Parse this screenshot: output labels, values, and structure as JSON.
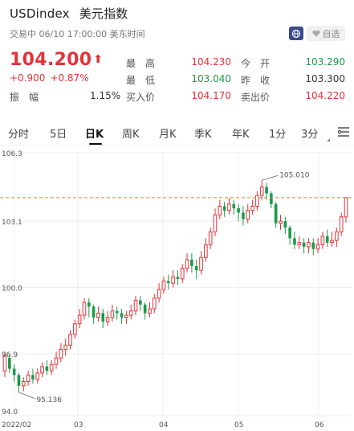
{
  "header": {
    "symbol": "USDindex",
    "name": "美元指数",
    "status": "交易中 06/10 17:00:00 美东时间",
    "favorite_label": "自选",
    "last_price": "104.200",
    "change": "+0.900",
    "change_pct": "+0.87%",
    "amplitude_label": "振　幅",
    "amplitude": "1.15%"
  },
  "quote": {
    "high_label": "最　高",
    "high": "104.230",
    "low_label": "最　低",
    "low": "103.040",
    "bid_label": "买入价",
    "bid": "104.170",
    "open_label": "今　开",
    "open": "103.290",
    "prev_close_label": "昨　收",
    "prev_close": "103.300",
    "ask_label": "卖出价",
    "ask": "104.220"
  },
  "tabs": [
    {
      "label": "分时"
    },
    {
      "label": "5日"
    },
    {
      "label": "日K"
    },
    {
      "label": "周K"
    },
    {
      "label": "月K"
    },
    {
      "label": "季K"
    },
    {
      "label": "年K"
    },
    {
      "label": "1分"
    },
    {
      "label": "3分"
    }
  ],
  "colors": {
    "up": "#e0343a",
    "down": "#1a9a4a",
    "last_line": "#e8823c"
  },
  "chart_data": {
    "type": "candlestick",
    "y_ticks": [
      "106.3",
      "103.1",
      "100.0",
      "96.9",
      "94.0"
    ],
    "x_ticks": [
      "2022/02",
      "03",
      "04",
      "05",
      "06"
    ],
    "ylim": [
      94.0,
      106.3
    ],
    "grid": true,
    "max_annotation": "105.010",
    "min_annotation": "95.136",
    "last_value": 104.2,
    "series": [
      {
        "o": 96.1,
        "c": 96.8,
        "h": 97.0,
        "l": 95.8
      },
      {
        "o": 96.7,
        "c": 96.2,
        "h": 96.9,
        "l": 96.0
      },
      {
        "o": 96.2,
        "c": 95.9,
        "h": 96.4,
        "l": 95.6
      },
      {
        "o": 95.9,
        "c": 95.4,
        "h": 96.0,
        "l": 95.1
      },
      {
        "o": 95.4,
        "c": 95.6,
        "h": 95.8,
        "l": 95.14
      },
      {
        "o": 95.6,
        "c": 95.9,
        "h": 96.1,
        "l": 95.4
      },
      {
        "o": 95.9,
        "c": 95.7,
        "h": 96.2,
        "l": 95.5
      },
      {
        "o": 95.7,
        "c": 96.0,
        "h": 96.2,
        "l": 95.5
      },
      {
        "o": 96.0,
        "c": 96.3,
        "h": 96.5,
        "l": 95.8
      },
      {
        "o": 96.3,
        "c": 96.1,
        "h": 96.6,
        "l": 95.9
      },
      {
        "o": 96.1,
        "c": 96.4,
        "h": 96.6,
        "l": 95.9
      },
      {
        "o": 96.4,
        "c": 96.7,
        "h": 97.0,
        "l": 96.2
      },
      {
        "o": 96.7,
        "c": 97.1,
        "h": 97.4,
        "l": 96.5
      },
      {
        "o": 97.1,
        "c": 97.3,
        "h": 97.6,
        "l": 96.8
      },
      {
        "o": 97.3,
        "c": 97.8,
        "h": 98.0,
        "l": 97.1
      },
      {
        "o": 97.8,
        "c": 98.3,
        "h": 98.5,
        "l": 97.6
      },
      {
        "o": 98.3,
        "c": 98.7,
        "h": 99.0,
        "l": 98.1
      },
      {
        "o": 98.7,
        "c": 99.3,
        "h": 99.5,
        "l": 98.5
      },
      {
        "o": 99.3,
        "c": 99.1,
        "h": 99.5,
        "l": 98.6
      },
      {
        "o": 99.1,
        "c": 98.6,
        "h": 99.2,
        "l": 98.3
      },
      {
        "o": 98.6,
        "c": 98.8,
        "h": 99.1,
        "l": 98.4
      },
      {
        "o": 98.8,
        "c": 98.4,
        "h": 99.0,
        "l": 98.1
      },
      {
        "o": 98.4,
        "c": 98.6,
        "h": 98.9,
        "l": 98.2
      },
      {
        "o": 98.6,
        "c": 98.9,
        "h": 99.2,
        "l": 98.4
      },
      {
        "o": 98.9,
        "c": 98.8,
        "h": 99.1,
        "l": 98.5
      },
      {
        "o": 98.8,
        "c": 98.6,
        "h": 99.0,
        "l": 98.3
      },
      {
        "o": 98.6,
        "c": 98.7,
        "h": 98.9,
        "l": 98.3
      },
      {
        "o": 98.7,
        "c": 98.9,
        "h": 99.2,
        "l": 98.5
      },
      {
        "o": 98.9,
        "c": 99.4,
        "h": 99.6,
        "l": 98.7
      },
      {
        "o": 99.4,
        "c": 99.2,
        "h": 99.6,
        "l": 98.9
      },
      {
        "o": 99.2,
        "c": 98.8,
        "h": 99.3,
        "l": 98.5
      },
      {
        "o": 98.8,
        "c": 99.0,
        "h": 99.3,
        "l": 98.6
      },
      {
        "o": 99.0,
        "c": 99.5,
        "h": 99.7,
        "l": 98.8
      },
      {
        "o": 99.5,
        "c": 99.9,
        "h": 100.2,
        "l": 99.3
      },
      {
        "o": 99.9,
        "c": 100.3,
        "h": 100.5,
        "l": 99.7
      },
      {
        "o": 100.3,
        "c": 100.2,
        "h": 100.6,
        "l": 99.9
      },
      {
        "o": 100.2,
        "c": 100.5,
        "h": 100.8,
        "l": 100.0
      },
      {
        "o": 100.5,
        "c": 100.4,
        "h": 100.8,
        "l": 100.1
      },
      {
        "o": 100.4,
        "c": 100.9,
        "h": 101.1,
        "l": 100.2
      },
      {
        "o": 100.9,
        "c": 101.3,
        "h": 101.6,
        "l": 100.7
      },
      {
        "o": 101.3,
        "c": 101.0,
        "h": 101.6,
        "l": 100.7
      },
      {
        "o": 101.0,
        "c": 100.8,
        "h": 101.3,
        "l": 100.4
      },
      {
        "o": 100.8,
        "c": 101.4,
        "h": 101.7,
        "l": 100.6
      },
      {
        "o": 101.4,
        "c": 102.0,
        "h": 102.3,
        "l": 101.2
      },
      {
        "o": 102.0,
        "c": 102.6,
        "h": 102.8,
        "l": 101.8
      },
      {
        "o": 102.6,
        "c": 103.4,
        "h": 103.7,
        "l": 102.4
      },
      {
        "o": 103.4,
        "c": 103.8,
        "h": 104.1,
        "l": 103.2
      },
      {
        "o": 103.8,
        "c": 103.6,
        "h": 104.0,
        "l": 103.3
      },
      {
        "o": 103.6,
        "c": 103.9,
        "h": 104.2,
        "l": 103.4
      },
      {
        "o": 103.9,
        "c": 103.7,
        "h": 104.1,
        "l": 103.4
      },
      {
        "o": 103.7,
        "c": 103.5,
        "h": 103.9,
        "l": 103.1
      },
      {
        "o": 103.5,
        "c": 103.2,
        "h": 103.8,
        "l": 102.9
      },
      {
        "o": 103.2,
        "c": 103.6,
        "h": 103.9,
        "l": 103.0
      },
      {
        "o": 103.6,
        "c": 103.8,
        "h": 104.1,
        "l": 103.4
      },
      {
        "o": 103.8,
        "c": 104.3,
        "h": 104.5,
        "l": 103.6
      },
      {
        "o": 104.3,
        "c": 104.7,
        "h": 105.01,
        "l": 104.1
      },
      {
        "o": 104.7,
        "c": 104.4,
        "h": 104.9,
        "l": 104.1
      },
      {
        "o": 104.4,
        "c": 103.9,
        "h": 104.5,
        "l": 103.7
      },
      {
        "o": 103.9,
        "c": 103.0,
        "h": 104.0,
        "l": 102.8
      },
      {
        "o": 103.0,
        "c": 103.1,
        "h": 103.4,
        "l": 102.7
      },
      {
        "o": 103.1,
        "c": 102.8,
        "h": 103.3,
        "l": 102.5
      },
      {
        "o": 102.8,
        "c": 102.3,
        "h": 102.9,
        "l": 102.0
      },
      {
        "o": 102.3,
        "c": 102.0,
        "h": 102.6,
        "l": 101.8
      },
      {
        "o": 102.0,
        "c": 102.1,
        "h": 102.4,
        "l": 101.8
      },
      {
        "o": 102.1,
        "c": 101.9,
        "h": 102.3,
        "l": 101.6
      },
      {
        "o": 101.9,
        "c": 102.1,
        "h": 102.3,
        "l": 101.6
      },
      {
        "o": 102.1,
        "c": 101.8,
        "h": 102.3,
        "l": 101.5
      },
      {
        "o": 101.8,
        "c": 102.0,
        "h": 102.3,
        "l": 101.6
      },
      {
        "o": 102.0,
        "c": 102.4,
        "h": 102.6,
        "l": 101.8
      },
      {
        "o": 102.4,
        "c": 102.1,
        "h": 102.7,
        "l": 101.9
      },
      {
        "o": 102.1,
        "c": 102.2,
        "h": 102.6,
        "l": 101.9
      },
      {
        "o": 102.2,
        "c": 102.6,
        "h": 102.8,
        "l": 101.9
      },
      {
        "o": 102.6,
        "c": 103.3,
        "h": 103.5,
        "l": 102.4
      },
      {
        "o": 103.3,
        "c": 104.2,
        "h": 104.23,
        "l": 103.04
      }
    ]
  }
}
